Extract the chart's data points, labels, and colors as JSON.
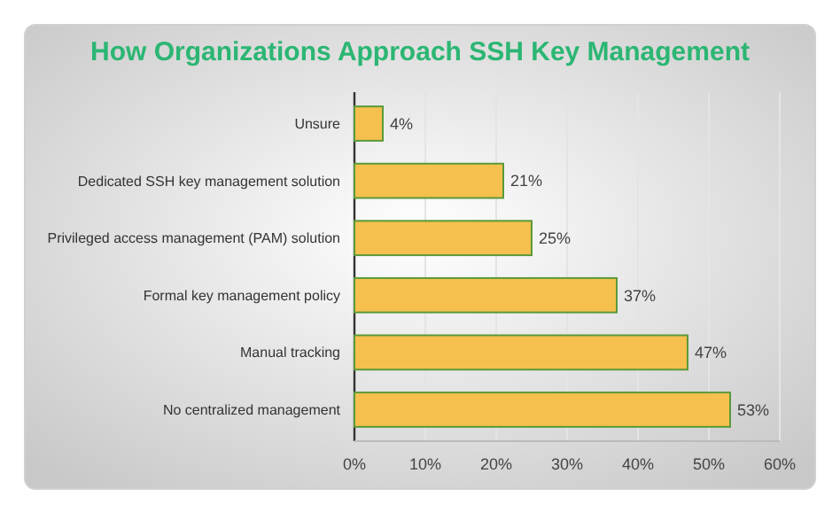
{
  "chart_data": {
    "type": "bar",
    "orientation": "horizontal",
    "title": "How Organizations Approach SSH Key Management",
    "categories": [
      "Unsure",
      "Dedicated SSH key management solution",
      "Privileged access management (PAM) solution",
      "Formal key management policy",
      "Manual tracking",
      "No centralized management"
    ],
    "values": [
      4,
      21,
      25,
      37,
      47,
      53
    ],
    "value_labels": [
      "4%",
      "21%",
      "25%",
      "37%",
      "47%",
      "53%"
    ],
    "color": "#f5c04e",
    "xlim": [
      0,
      60
    ],
    "xticks": [
      {
        "value": 0,
        "label": "0%"
      },
      {
        "value": 10,
        "label": "10%"
      },
      {
        "value": 20,
        "label": "20%"
      },
      {
        "value": 30,
        "label": "30%"
      },
      {
        "value": 40,
        "label": "40%"
      },
      {
        "value": 50,
        "label": "50%"
      },
      {
        "value": 60,
        "label": "60%"
      }
    ],
    "grid": "x"
  }
}
